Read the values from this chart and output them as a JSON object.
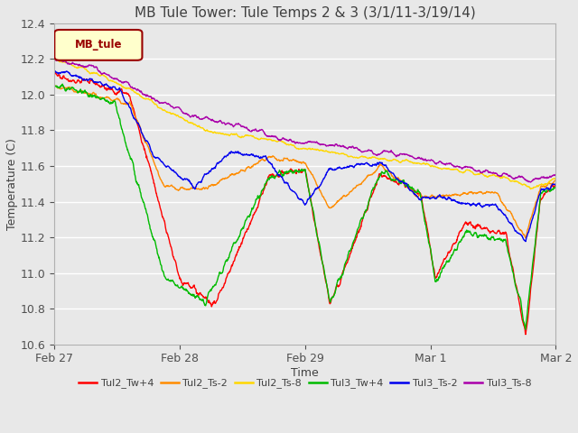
{
  "title": "MB Tule Tower: Tule Temps 2 & 3 (3/1/11-3/19/14)",
  "xlabel": "Time",
  "ylabel": "Temperature (C)",
  "ylim": [
    10.6,
    12.4
  ],
  "yticks": [
    10.6,
    10.8,
    11.0,
    11.2,
    11.4,
    11.6,
    11.8,
    12.0,
    12.2,
    12.4
  ],
  "legend_label": "MB_tule",
  "lines": [
    {
      "name": "Tul2_Tw+4",
      "color": "#FF0000"
    },
    {
      "name": "Tul2_Ts-2",
      "color": "#FF8C00"
    },
    {
      "name": "Tul2_Ts-8",
      "color": "#FFD700"
    },
    {
      "name": "Tul3_Tw+4",
      "color": "#00BB00"
    },
    {
      "name": "Tul3_Ts-2",
      "color": "#0000EE"
    },
    {
      "name": "Tul3_Ts-8",
      "color": "#AA00AA"
    }
  ],
  "background_color": "#E8E8E8",
  "grid_color": "#FFFFFF",
  "title_fontsize": 11,
  "axis_fontsize": 9,
  "tick_fontsize": 9
}
